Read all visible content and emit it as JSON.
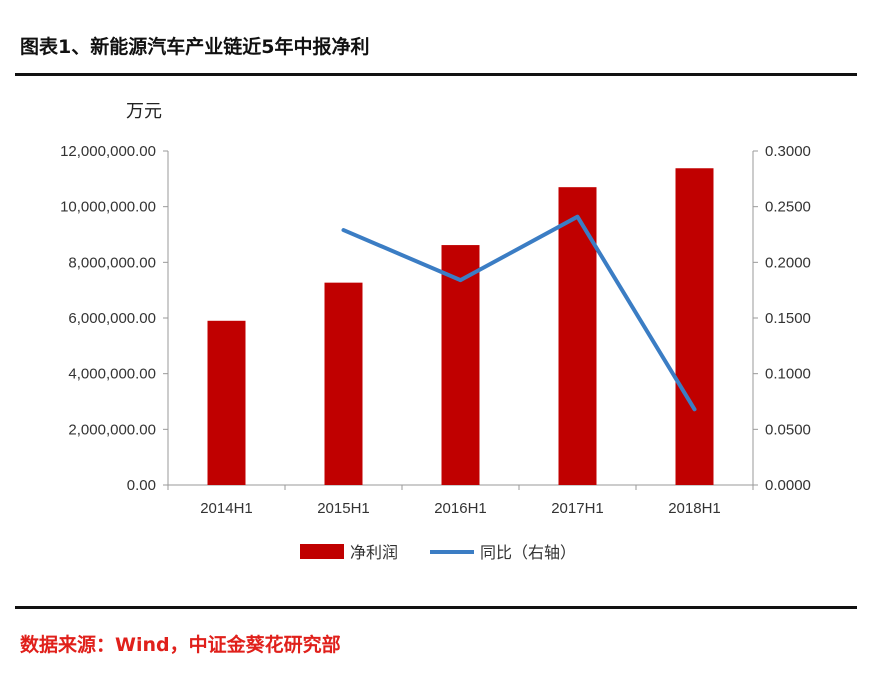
{
  "header": {
    "title": "图表1、新能源汽车产业链近5年中报净利"
  },
  "footer": {
    "source": "数据来源：Wind，中证金葵花研究部"
  },
  "chart_data": {
    "type": "bar",
    "categories": [
      "2014H1",
      "2015H1",
      "2016H1",
      "2017H1",
      "2018H1"
    ],
    "series": [
      {
        "name": "净利润",
        "type": "bar",
        "axis": "left",
        "color": "#c00000",
        "values": [
          5900000,
          7270000,
          8620000,
          10700000,
          11380000
        ]
      },
      {
        "name": "同比（右轴）",
        "type": "line",
        "axis": "right",
        "color": "#3b7dc4",
        "values": [
          null,
          0.229,
          0.184,
          0.241,
          0.068
        ]
      }
    ],
    "y_left": {
      "unit": "万元",
      "min": 0,
      "max": 12000000,
      "ticks": [
        "0.00",
        "2,000,000.00",
        "4,000,000.00",
        "6,000,000.00",
        "8,000,000.00",
        "10,000,000.00",
        "12,000,000.00"
      ]
    },
    "y_right": {
      "min": 0,
      "max": 0.3,
      "ticks": [
        "0.0000",
        "0.0500",
        "0.1000",
        "0.1500",
        "0.2000",
        "0.2500",
        "0.3000"
      ]
    },
    "grid": false,
    "legend_position": "bottom"
  }
}
